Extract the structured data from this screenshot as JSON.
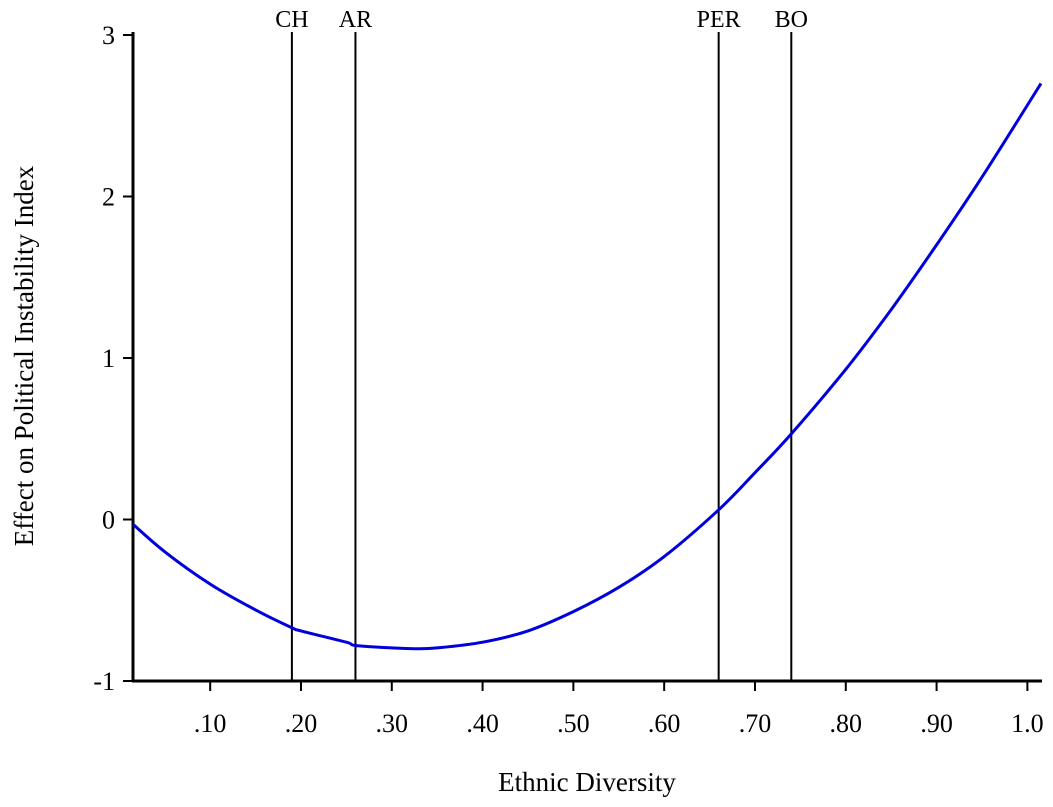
{
  "chart_data": {
    "type": "line",
    "xlabel": "Ethnic Diversity",
    "ylabel": "Effect on Political Instability Index",
    "xlim": [
      0.015,
      1.015
    ],
    "ylim": [
      -1,
      3
    ],
    "x_ticks": [
      0.1,
      0.2,
      0.3,
      0.4,
      0.5,
      0.6,
      0.7,
      0.8,
      0.9,
      1.0
    ],
    "x_tick_labels": [
      ".10",
      ".20",
      ".30",
      ".40",
      ".50",
      ".60",
      ".70",
      ".80",
      ".90",
      "1.0"
    ],
    "y_ticks": [
      -1,
      0,
      1,
      2,
      3
    ],
    "y_tick_labels": [
      "-1",
      "0",
      "1",
      "2",
      "3"
    ],
    "series": [
      {
        "color": "#0000dd",
        "x": [
          0.015,
          0.05,
          0.1,
          0.15,
          0.19,
          0.2,
          0.25,
          0.26,
          0.3,
          0.325,
          0.35,
          0.4,
          0.45,
          0.5,
          0.55,
          0.6,
          0.66,
          0.7,
          0.74,
          0.8,
          0.85,
          0.9,
          0.95,
          1.015
        ],
        "y": [
          -0.03,
          -0.2,
          -0.4,
          -0.56,
          -0.67,
          -0.69,
          -0.76,
          -0.78,
          -0.795,
          -0.8,
          -0.795,
          -0.76,
          -0.69,
          -0.57,
          -0.42,
          -0.23,
          0.06,
          0.29,
          0.53,
          0.93,
          1.3,
          1.7,
          2.12,
          2.7
        ]
      }
    ],
    "markers": [
      {
        "label": "CH",
        "x": 0.19
      },
      {
        "label": "AR",
        "x": 0.26
      },
      {
        "label": "PER",
        "x": 0.66
      },
      {
        "label": "BO",
        "x": 0.74
      }
    ],
    "grid": false,
    "legend": "none"
  }
}
